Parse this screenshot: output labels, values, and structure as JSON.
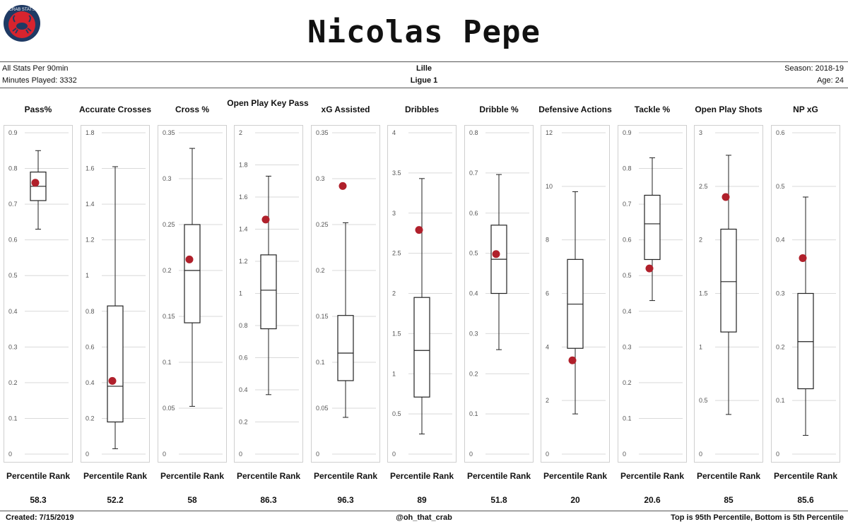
{
  "title": "Nicolas Pepe",
  "logo": {
    "text": "CRAB STATS"
  },
  "info": {
    "left1": "All Stats Per 90min",
    "left2": "Minutes Played: 3332",
    "team": "Lille",
    "league": "Ligue 1",
    "season": "Season: 2018-19",
    "age": "Age: 24"
  },
  "footer": {
    "created": "Created:  7/15/2019",
    "handle": "@oh_that_crab",
    "note": "Top is 95th Percentile, Bottom is 5th Percentile"
  },
  "colors": {
    "box": "#222222",
    "dot": "#b0202b",
    "grid": "#d9d9d9",
    "panel": "#cfcfcf"
  },
  "chart_data": [
    {
      "type": "box",
      "title": "Pass%",
      "ticks": [
        "0",
        "0.1",
        "0.2",
        "0.3",
        "0.4",
        "0.5",
        "0.6",
        "0.7",
        "0.8",
        "0.9"
      ],
      "ylim": [
        0,
        0.9
      ],
      "whisker_low": 0.63,
      "q1": 0.71,
      "median": 0.75,
      "q3": 0.79,
      "whisker_high": 0.85,
      "player": 0.76,
      "rank_label": "Percentile Rank",
      "rank": "58.3"
    },
    {
      "type": "box",
      "title": "Accurate Crosses",
      "ticks": [
        "0",
        "0.2",
        "0.4",
        "0.6",
        "0.8",
        "1",
        "1.2",
        "1.4",
        "1.6",
        "1.8"
      ],
      "ylim": [
        0,
        1.8
      ],
      "whisker_low": 0.03,
      "q1": 0.18,
      "median": 0.38,
      "q3": 0.83,
      "whisker_high": 1.61,
      "player": 0.41,
      "rank_label": "Percentile Rank",
      "rank": "52.2"
    },
    {
      "type": "box",
      "title": "Cross %",
      "ticks": [
        "0",
        "0.05",
        "0.1",
        "0.15",
        "0.2",
        "0.25",
        "0.3",
        "0.35"
      ],
      "ylim": [
        0,
        0.35
      ],
      "whisker_low": 0.052,
      "q1": 0.143,
      "median": 0.2,
      "q3": 0.25,
      "whisker_high": 0.333,
      "player": 0.212,
      "rank_label": "Percentile Rank",
      "rank": "58"
    },
    {
      "type": "box",
      "title": "Open Play Key Pass",
      "ticks": [
        "0",
        "0.2",
        "0.4",
        "0.6",
        "0.8",
        "1",
        "1.2",
        "1.4",
        "1.6",
        "1.8",
        "2"
      ],
      "ylim": [
        0,
        2
      ],
      "whisker_low": 0.37,
      "q1": 0.78,
      "median": 1.02,
      "q3": 1.24,
      "whisker_high": 1.73,
      "player": 1.46,
      "rank_label": "Percentile Rank",
      "rank": "86.3"
    },
    {
      "type": "box",
      "title": "xG Assisted",
      "ticks": [
        "0",
        "0.05",
        "0.1",
        "0.15",
        "0.2",
        "0.25",
        "0.3",
        "0.35"
      ],
      "ylim": [
        0,
        0.35
      ],
      "whisker_low": 0.04,
      "q1": 0.08,
      "median": 0.11,
      "q3": 0.151,
      "whisker_high": 0.252,
      "player": 0.292,
      "rank_label": "Percentile Rank",
      "rank": "96.3"
    },
    {
      "type": "box",
      "title": "Dribbles",
      "ticks": [
        "0",
        "0.5",
        "1",
        "1.5",
        "2",
        "2.5",
        "3",
        "3.5",
        "4"
      ],
      "ylim": [
        0,
        4
      ],
      "whisker_low": 0.25,
      "q1": 0.71,
      "median": 1.29,
      "q3": 1.95,
      "whisker_high": 3.43,
      "player": 2.79,
      "rank_label": "Percentile Rank",
      "rank": "89"
    },
    {
      "type": "box",
      "title": "Dribble %",
      "ticks": [
        "0",
        "0.1",
        "0.2",
        "0.3",
        "0.4",
        "0.5",
        "0.6",
        "0.7",
        "0.8"
      ],
      "ylim": [
        0,
        0.8
      ],
      "whisker_low": 0.26,
      "q1": 0.4,
      "median": 0.485,
      "q3": 0.57,
      "whisker_high": 0.696,
      "player": 0.498,
      "rank_label": "Percentile Rank",
      "rank": "51.8"
    },
    {
      "type": "box",
      "title": "Defensive Actions",
      "ticks": [
        "0",
        "2",
        "4",
        "6",
        "8",
        "10",
        "12"
      ],
      "ylim": [
        0,
        12
      ],
      "whisker_low": 1.5,
      "q1": 3.95,
      "median": 5.6,
      "q3": 7.27,
      "whisker_high": 9.8,
      "player": 3.5,
      "rank_label": "Percentile Rank",
      "rank": "20"
    },
    {
      "type": "box",
      "title": "Tackle %",
      "ticks": [
        "0",
        "0.1",
        "0.2",
        "0.3",
        "0.4",
        "0.5",
        "0.6",
        "0.7",
        "0.8",
        "0.9"
      ],
      "ylim": [
        0,
        0.9
      ],
      "whisker_low": 0.43,
      "q1": 0.545,
      "median": 0.645,
      "q3": 0.725,
      "whisker_high": 0.83,
      "player": 0.52,
      "rank_label": "Percentile Rank",
      "rank": "20.6"
    },
    {
      "type": "box",
      "title": "Open Play Shots",
      "ticks": [
        "0",
        "0.5",
        "1",
        "1.5",
        "2",
        "2.5",
        "3"
      ],
      "ylim": [
        0,
        3
      ],
      "whisker_low": 0.37,
      "q1": 1.14,
      "median": 1.61,
      "q3": 2.1,
      "whisker_high": 2.79,
      "player": 2.4,
      "rank_label": "Percentile Rank",
      "rank": "85"
    },
    {
      "type": "box",
      "title": "NP xG",
      "ticks": [
        "0",
        "0.1",
        "0.2",
        "0.3",
        "0.4",
        "0.5",
        "0.6"
      ],
      "ylim": [
        0,
        0.6
      ],
      "whisker_low": 0.035,
      "q1": 0.122,
      "median": 0.21,
      "q3": 0.3,
      "whisker_high": 0.48,
      "player": 0.366,
      "rank_label": "Percentile Rank",
      "rank": "85.6"
    }
  ]
}
